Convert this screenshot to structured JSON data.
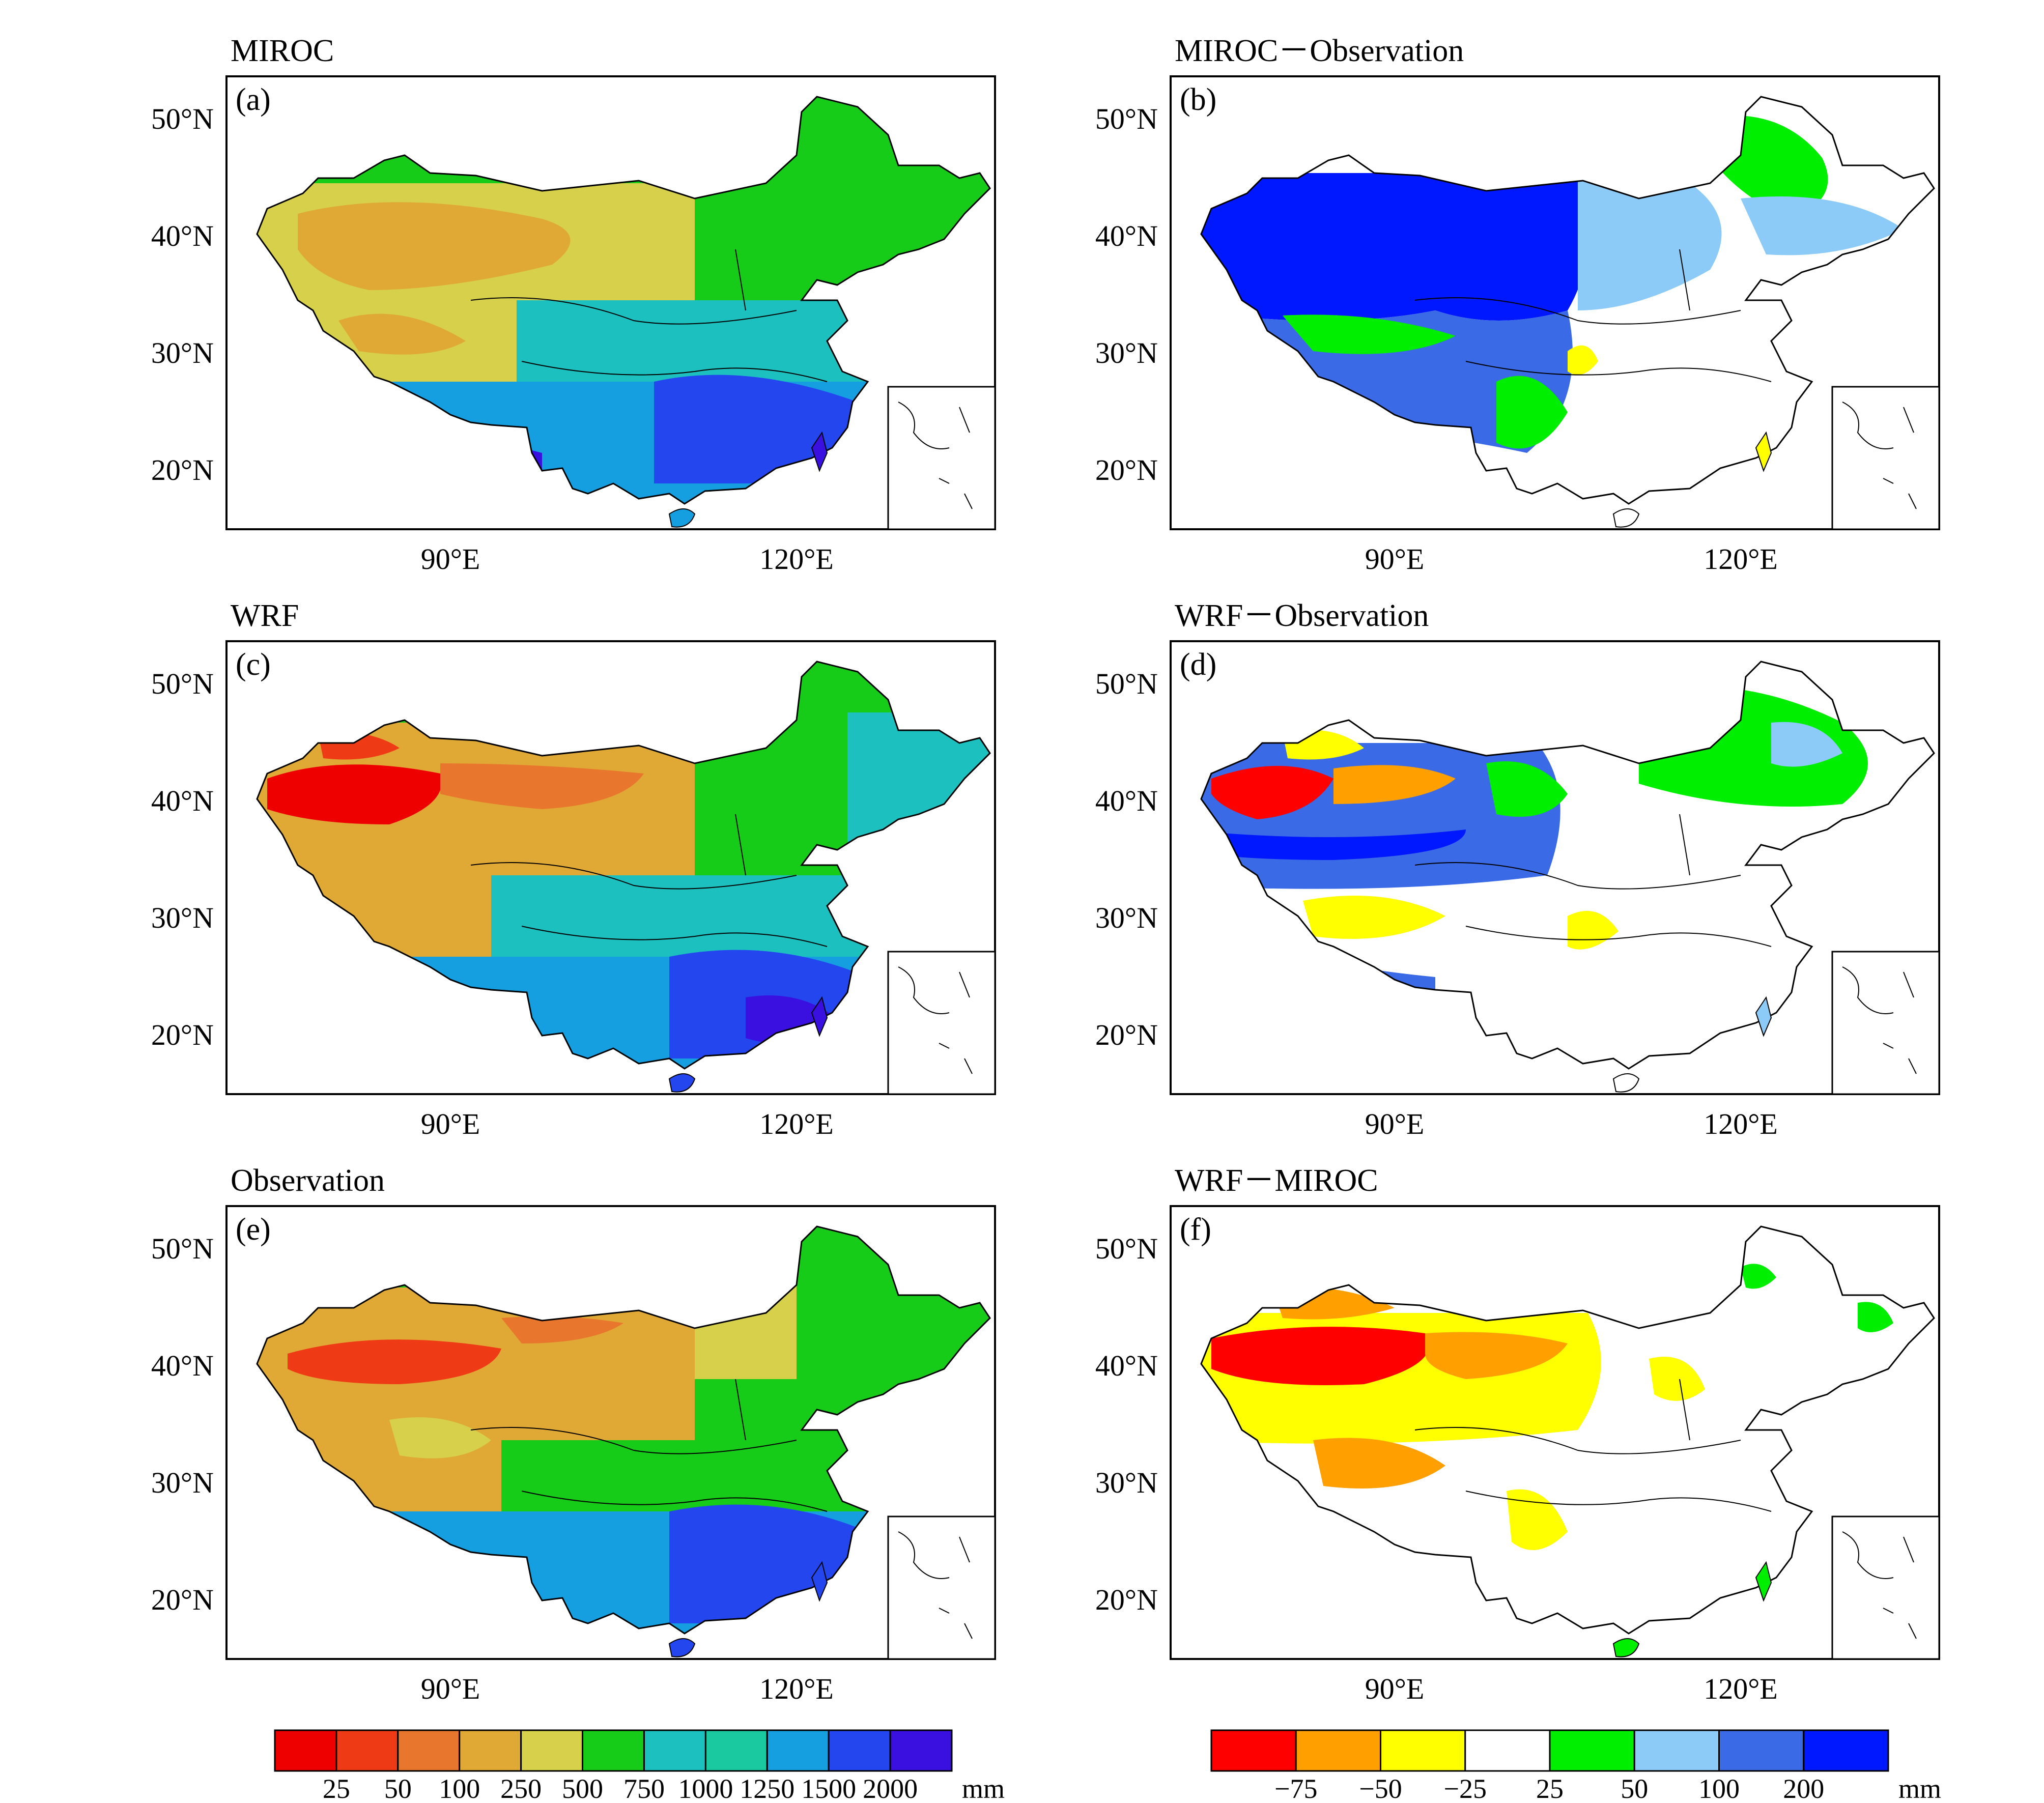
{
  "panels": [
    {
      "id": "a",
      "title": "MIROC",
      "label": "(a)",
      "scheme": "abs"
    },
    {
      "id": "b",
      "title": "MIROC－Observation",
      "label": "(b)",
      "scheme": "diff"
    },
    {
      "id": "c",
      "title": "WRF",
      "label": "(c)",
      "scheme": "abs"
    },
    {
      "id": "d",
      "title": "WRF－Observation",
      "label": "(d)",
      "scheme": "diff"
    },
    {
      "id": "e",
      "title": "Observation",
      "label": "(e)",
      "scheme": "abs"
    },
    {
      "id": "f",
      "title": "WRF－MIROC",
      "label": "(f)",
      "scheme": "diff"
    }
  ],
  "axes": {
    "lat_ticks": [
      "50°N",
      "40°N",
      "30°N",
      "20°N"
    ],
    "lon_ticks": [
      "90°E",
      "120°E"
    ]
  },
  "colorbar_abs": {
    "colors": [
      "#ee0000",
      "#ee3b16",
      "#e8772d",
      "#e0a834",
      "#d6d04a",
      "#16cc18",
      "#1cc0bf",
      "#1ac9a0",
      "#159fe0",
      "#2346ee",
      "#3a10e0"
    ],
    "labels": [
      "25",
      "50",
      "100",
      "250",
      "500",
      "750",
      "1000",
      "1250",
      "1500",
      "2000"
    ],
    "unit": "mm"
  },
  "colorbar_diff": {
    "colors": [
      "#ff0000",
      "#ff9f00",
      "#ffff00",
      "#ffffff",
      "#00ee00",
      "#8ccaf8",
      "#3a6ae6",
      "#0018ff"
    ],
    "labels": [
      "−75",
      "−50",
      "−25",
      "25",
      "50",
      "100",
      "200"
    ],
    "unit": "mm"
  },
  "colors": {
    "outline": "#000000"
  }
}
